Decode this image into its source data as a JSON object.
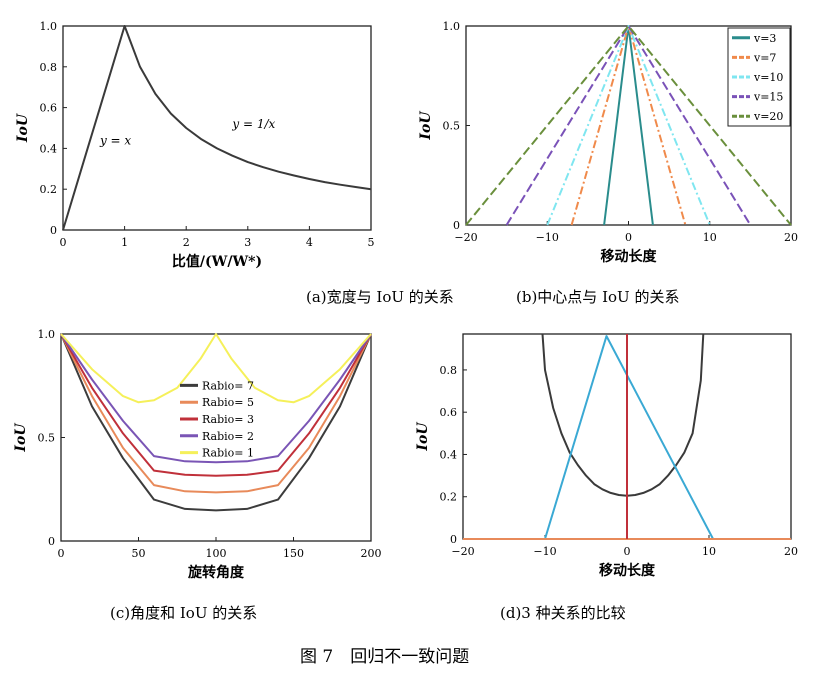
{
  "figure_caption": "图 7　回归不一致问题",
  "chart_data": [
    {
      "id": "a",
      "type": "line",
      "caption": "(a)宽度与 IoU 的关系",
      "xlabel": "比值/(W/W*)",
      "ylabel": "IoU",
      "xlim": [
        0,
        5
      ],
      "ylim": [
        0,
        1
      ],
      "xticks": [
        "0",
        "1",
        "2",
        "3",
        "4",
        "5"
      ],
      "yticks": [
        "0",
        "0.2",
        "0.4",
        "0.6",
        "0.8",
        "1.0"
      ],
      "annotations": [
        {
          "text": "y = x",
          "x": 0.6,
          "y": 0.42
        },
        {
          "text": "y = 1/x",
          "x": 2.75,
          "y": 0.5
        }
      ],
      "series": [
        {
          "color": "#3a3a3a",
          "x": [
            0,
            0.2,
            0.4,
            0.6,
            0.8,
            1,
            1.25,
            1.5,
            1.75,
            2,
            2.25,
            2.5,
            2.75,
            3,
            3.25,
            3.5,
            3.75,
            4,
            4.25,
            4.5,
            4.75,
            5
          ],
          "y": [
            0,
            0.2,
            0.4,
            0.6,
            0.8,
            1.0,
            0.8,
            0.667,
            0.571,
            0.5,
            0.444,
            0.4,
            0.364,
            0.333,
            0.308,
            0.286,
            0.267,
            0.25,
            0.235,
            0.222,
            0.211,
            0.2
          ]
        }
      ]
    },
    {
      "id": "b",
      "type": "line",
      "caption": "(b)中心点与 IoU 的关系",
      "xlabel": "移动长度",
      "ylabel": "IoU",
      "xlim": [
        -20,
        20
      ],
      "ylim": [
        0,
        1
      ],
      "xticks": [
        "−20",
        "−10",
        "0",
        "10",
        "20"
      ],
      "yticks": [
        "0",
        "0.5",
        "1.0"
      ],
      "legend_position": "top-right",
      "series": [
        {
          "name": "v=3",
          "color": "#2a8c8c",
          "dash": "solid",
          "x": [
            -3,
            0,
            3
          ],
          "y": [
            0,
            1,
            0
          ]
        },
        {
          "name": "v=7",
          "color": "#f08a4b",
          "dash": "dash-dot",
          "x": [
            -7,
            0,
            7
          ],
          "y": [
            0,
            1,
            0
          ]
        },
        {
          "name": "v=10",
          "color": "#7fe6f0",
          "dash": "dash-dot",
          "x": [
            -10,
            0,
            10
          ],
          "y": [
            0,
            1,
            0
          ]
        },
        {
          "name": "v=15",
          "color": "#7a52b8",
          "dash": "dashed",
          "x": [
            -15,
            0,
            15
          ],
          "y": [
            0,
            1,
            0
          ]
        },
        {
          "name": "v=20",
          "color": "#6a8f3c",
          "dash": "dashed",
          "x": [
            -20,
            0,
            20
          ],
          "y": [
            0,
            1,
            0
          ]
        }
      ]
    },
    {
      "id": "c",
      "type": "line",
      "caption": "(c)角度和 IoU 的关系",
      "xlabel": "旋转角度",
      "ylabel": "IoU",
      "xlim": [
        0,
        200
      ],
      "ylim": [
        0,
        1
      ],
      "xticks": [
        "0",
        "50",
        "100",
        "150",
        "200"
      ],
      "yticks": [
        "0",
        "0.5",
        "1.0"
      ],
      "legend_position": "center",
      "series": [
        {
          "name": "Rabio= 7",
          "color": "#3c3c3c",
          "x": [
            0,
            20,
            40,
            60,
            80,
            100,
            120,
            140,
            160,
            180,
            200
          ],
          "y": [
            1.0,
            0.65,
            0.4,
            0.2,
            0.155,
            0.148,
            0.155,
            0.2,
            0.4,
            0.65,
            1.0
          ]
        },
        {
          "name": "Rabio= 5",
          "color": "#e88a5a",
          "x": [
            0,
            20,
            40,
            60,
            80,
            100,
            120,
            140,
            160,
            180,
            200
          ],
          "y": [
            1.0,
            0.7,
            0.45,
            0.27,
            0.24,
            0.235,
            0.24,
            0.27,
            0.45,
            0.7,
            1.0
          ]
        },
        {
          "name": "Rabio= 3",
          "color": "#c0303a",
          "x": [
            0,
            20,
            40,
            60,
            80,
            100,
            120,
            140,
            160,
            180,
            200
          ],
          "y": [
            1.0,
            0.74,
            0.52,
            0.34,
            0.32,
            0.315,
            0.32,
            0.34,
            0.52,
            0.74,
            1.0
          ]
        },
        {
          "name": "Rabio= 2",
          "color": "#7a55b5",
          "x": [
            0,
            20,
            40,
            60,
            80,
            100,
            120,
            140,
            160,
            180,
            200
          ],
          "y": [
            1.0,
            0.78,
            0.58,
            0.41,
            0.385,
            0.38,
            0.385,
            0.41,
            0.58,
            0.78,
            1.0
          ]
        },
        {
          "name": "Rabio= 1",
          "color": "#f5f05a",
          "x": [
            0,
            20,
            40,
            50,
            60,
            75,
            90,
            100,
            110,
            125,
            140,
            150,
            160,
            180,
            200
          ],
          "y": [
            1.0,
            0.83,
            0.7,
            0.67,
            0.68,
            0.74,
            0.88,
            1.0,
            0.88,
            0.74,
            0.68,
            0.67,
            0.7,
            0.83,
            1.0
          ]
        }
      ]
    },
    {
      "id": "d",
      "type": "line",
      "caption": "(d)3 种关系的比较",
      "xlabel": "移动长度",
      "ylabel": "IoU",
      "xlim": [
        -20,
        20
      ],
      "ylim": [
        0,
        0.97
      ],
      "xticks": [
        "−20",
        "−10",
        "0",
        "10",
        "20"
      ],
      "yticks": [
        "0",
        "0.2",
        "0.4",
        "0.6",
        "0.8"
      ],
      "series": [
        {
          "color": "#3a3a3a",
          "x": [
            -10.3,
            -10,
            -9,
            -8,
            -7,
            -6,
            -5,
            -4,
            -3,
            -2,
            -1,
            0,
            1,
            2,
            3,
            4,
            5,
            6,
            7,
            8,
            9,
            9.3
          ],
          "y": [
            0.97,
            0.8,
            0.62,
            0.5,
            0.41,
            0.35,
            0.3,
            0.26,
            0.235,
            0.218,
            0.208,
            0.205,
            0.208,
            0.218,
            0.235,
            0.26,
            0.3,
            0.35,
            0.41,
            0.5,
            0.75,
            0.97
          ]
        },
        {
          "color": "#3aa9d4",
          "x": [
            -10,
            -2.5,
            10.5
          ],
          "y": [
            0,
            0.96,
            0
          ]
        },
        {
          "color": "#e88a5a",
          "x": [
            -20,
            -10,
            10.5,
            20
          ],
          "y": [
            0,
            0,
            0,
            0
          ]
        },
        {
          "color": "#c0303a",
          "x": [
            0,
            0
          ],
          "y": [
            0,
            0.97
          ]
        }
      ]
    }
  ]
}
